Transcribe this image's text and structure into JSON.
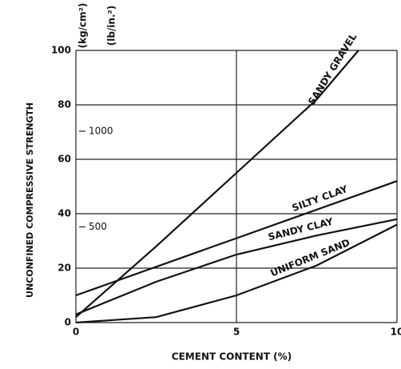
{
  "chart_data": {
    "type": "line",
    "y_label": "UNCONFINED COMPRESSIVE STRENGTH",
    "y_unit": "(kg/cm²)",
    "y2_unit": "(lb/in.²)",
    "x_label": "CEMENT CONTENT (%)",
    "xlim": [
      0,
      10
    ],
    "xticks": [
      0,
      5,
      10
    ],
    "ylim": [
      0,
      100
    ],
    "yticks": [
      0,
      20,
      40,
      60,
      80,
      100
    ],
    "y2lim": [
      0,
      1422
    ],
    "y2ticks": [
      500,
      1000
    ],
    "grid": true,
    "series": [
      {
        "name": "SANDY GRAVEL",
        "color": "#111111",
        "x": [
          0,
          2.5,
          5,
          7.5,
          8.8
        ],
        "values": [
          2,
          28,
          55,
          82,
          100
        ]
      },
      {
        "name": "SILTY CLAY",
        "color": "#111111",
        "x": [
          0,
          5,
          10
        ],
        "values": [
          10,
          31,
          52
        ]
      },
      {
        "name": "SANDY CLAY",
        "color": "#111111",
        "x": [
          0,
          2.5,
          5,
          7.5,
          10
        ],
        "values": [
          3,
          15,
          25,
          32,
          38
        ]
      },
      {
        "name": "UNIFORM SAND",
        "color": "#111111",
        "x": [
          0,
          2.5,
          5,
          7.5,
          10
        ],
        "values": [
          0,
          2,
          10,
          21,
          36
        ]
      }
    ]
  }
}
